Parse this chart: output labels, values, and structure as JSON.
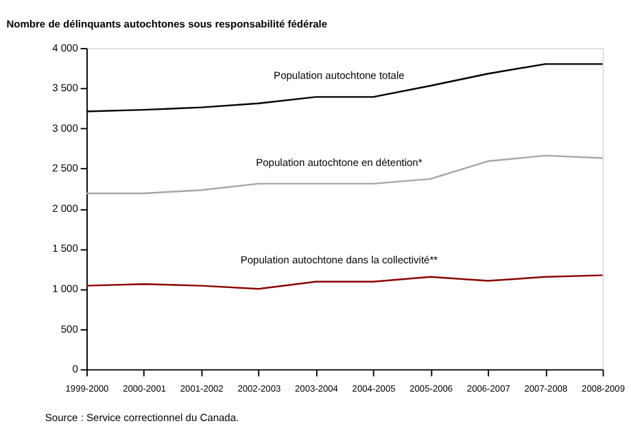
{
  "chart_data": {
    "type": "line",
    "title": "Nombre de délinquants autochtones sous responsabilité fédérale",
    "categories": [
      "1999-2000",
      "2000-2001",
      "2001-2002",
      "2002-2003",
      "2003-2004",
      "2004-2005",
      "2005-2006",
      "2006-2007",
      "2007-2008",
      "2008-2009"
    ],
    "series": [
      {
        "name": "Population autochtone totale",
        "color": "#000000",
        "values": [
          3210,
          3230,
          3260,
          3310,
          3390,
          3390,
          3530,
          3680,
          3800,
          3800
        ]
      },
      {
        "name": "Population autochtone en détention*",
        "color": "#a6a6a6",
        "values": [
          2190,
          2190,
          2230,
          2310,
          2310,
          2310,
          2370,
          2590,
          2660,
          2630
        ]
      },
      {
        "name": "Population autochtone dans la collectivité**",
        "color": "#8b0000",
        "values": [
          1040,
          1060,
          1040,
          1000,
          1090,
          1090,
          1150,
          1100,
          1150,
          1170
        ]
      }
    ],
    "ylim": [
      0,
      4000
    ],
    "yticks": [
      0,
      500,
      {
        "value": 1000,
        "label": "1 000"
      },
      {
        "value": 1500,
        "label": "1 500"
      },
      {
        "value": 2000,
        "label": "2 000"
      },
      {
        "value": 2500,
        "label": "2 500"
      },
      {
        "value": 3000,
        "label": "3 000"
      },
      {
        "value": 3500,
        "label": "3 500"
      },
      {
        "value": 4000,
        "label": "4 000"
      }
    ],
    "grid": false,
    "legend": false,
    "marker": "none",
    "line_style": "solid",
    "annotations": [
      "Source : Service correctionnel du Canada."
    ]
  }
}
